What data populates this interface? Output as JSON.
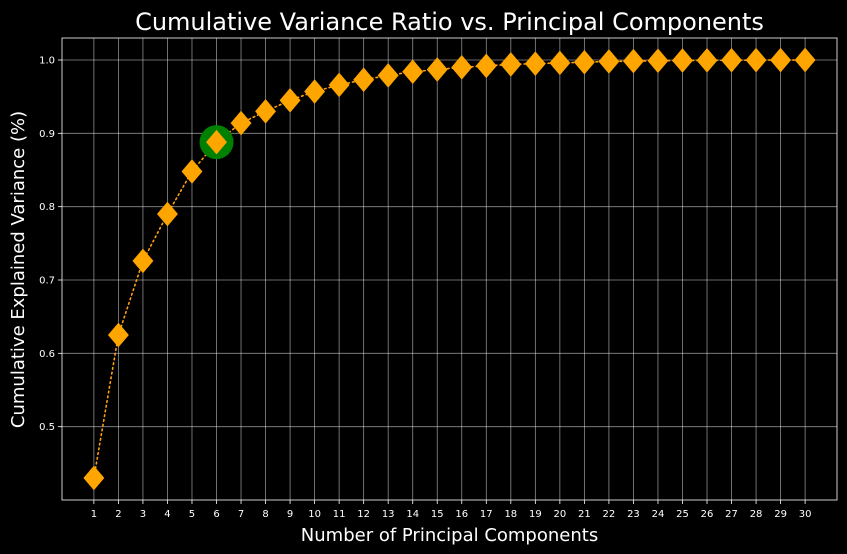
{
  "chart_data": {
    "type": "line",
    "title": "Cumulative Variance Ratio vs. Principal Components",
    "xlabel": "Number of Principal Components",
    "ylabel": "Cumulative Explained Variance (%)",
    "x": [
      1,
      2,
      3,
      4,
      5,
      6,
      7,
      8,
      9,
      10,
      11,
      12,
      13,
      14,
      15,
      16,
      17,
      18,
      19,
      20,
      21,
      22,
      23,
      24,
      25,
      26,
      27,
      28,
      29,
      30
    ],
    "x_tick_labels": [
      "1",
      "2",
      "3",
      "4",
      "5",
      "6",
      "7",
      "8",
      "9",
      "10",
      "11",
      "12",
      "13",
      "14",
      "15",
      "16",
      "17",
      "18",
      "19",
      "20",
      "21",
      "22",
      "23",
      "24",
      "25",
      "26",
      "27",
      "28",
      "29",
      "30"
    ],
    "y_ticks": [
      0.5,
      0.6,
      0.7,
      0.8,
      0.9,
      1.0
    ],
    "y_tick_labels": [
      "0.5",
      "0.6",
      "0.7",
      "0.8",
      "0.9",
      "1.0"
    ],
    "xlim": [
      -0.3,
      31.3
    ],
    "ylim": [
      0.4,
      1.03
    ],
    "grid": true,
    "series": [
      {
        "values": [
          0.43,
          0.625,
          0.726,
          0.79,
          0.848,
          0.888,
          0.914,
          0.93,
          0.945,
          0.957,
          0.966,
          0.973,
          0.979,
          0.984,
          0.987,
          0.99,
          0.992,
          0.994,
          0.995,
          0.996,
          0.997,
          0.998,
          0.9985,
          0.999,
          0.9993,
          0.9995,
          0.9997,
          0.9998,
          0.9999,
          1.0
        ],
        "line_style": "dotted",
        "line_color": "#ff9f0f",
        "marker": "diamond",
        "marker_color": "#ffa500"
      }
    ],
    "highlight": {
      "x": 6,
      "y": 0.888,
      "color": "#008000"
    },
    "colors": {
      "background": "#000000",
      "foreground": "#ffffff"
    }
  }
}
